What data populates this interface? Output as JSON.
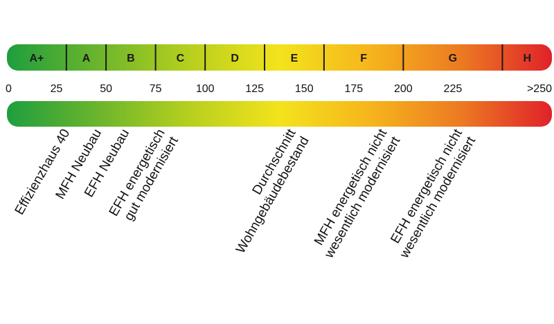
{
  "energy_scale": {
    "unit_range": [
      0,
      275
    ],
    "gradient_colors": [
      "#1e9e3e",
      "#6bb52c",
      "#b6cf1e",
      "#f3e31c",
      "#f6b51c",
      "#ec7a22",
      "#e0222a"
    ],
    "classes": [
      {
        "label": "A+",
        "from": 0,
        "to": 30
      },
      {
        "label": "A",
        "from": 30,
        "to": 50
      },
      {
        "label": "B",
        "from": 50,
        "to": 75
      },
      {
        "label": "C",
        "from": 75,
        "to": 100
      },
      {
        "label": "D",
        "from": 100,
        "to": 130
      },
      {
        "label": "E",
        "from": 130,
        "to": 160
      },
      {
        "label": "F",
        "from": 160,
        "to": 200
      },
      {
        "label": "G",
        "from": 200,
        "to": 250
      },
      {
        "label": "H",
        "from": 250,
        "to": 275
      }
    ],
    "ticks": [
      {
        "label": "0",
        "value": 0
      },
      {
        "label": "25",
        "value": 25
      },
      {
        "label": "50",
        "value": 50
      },
      {
        "label": "75",
        "value": 75
      },
      {
        "label": "100",
        "value": 100
      },
      {
        "label": "125",
        "value": 125
      },
      {
        "label": "150",
        "value": 150
      },
      {
        "label": "175",
        "value": 175
      },
      {
        "label": "200",
        "value": 200
      },
      {
        "label": "225",
        "value": 225
      },
      {
        "label": ">250",
        "value": 262
      }
    ],
    "building_types": [
      {
        "lines": [
          "Effizienzhaus 40"
        ],
        "value": 30
      },
      {
        "lines": [
          "MFH Neubau"
        ],
        "value": 46
      },
      {
        "lines": [
          "EFH Neubau"
        ],
        "value": 60
      },
      {
        "lines": [
          "EFH energetisch",
          "gut modernisiert"
        ],
        "value": 78
      },
      {
        "lines": [
          "Durchschnitt",
          "Wohngebäudebestand"
        ],
        "value": 144
      },
      {
        "lines": [
          "MFH energetisch nicht",
          "wesentlich modernisiert"
        ],
        "value": 190
      },
      {
        "lines": [
          "EFH energetisch nicht",
          "wesentlich modernisiert"
        ],
        "value": 228
      }
    ]
  }
}
